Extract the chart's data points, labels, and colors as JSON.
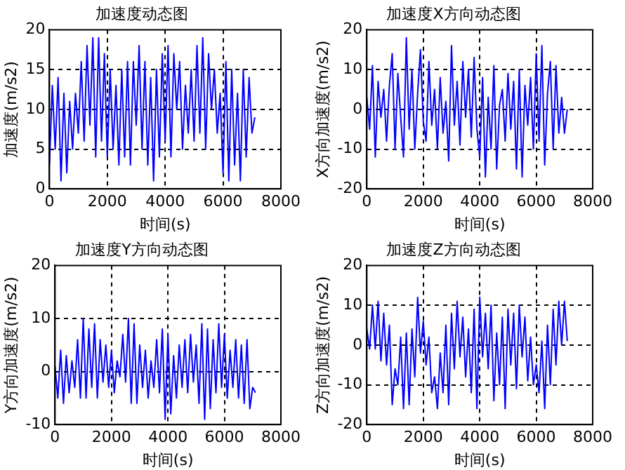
{
  "chart_data": [
    {
      "type": "line",
      "title": "加速度动态图",
      "xlabel": "时间(s)",
      "ylabel": "加速度(m/s2)",
      "grid": true,
      "xlim": [
        0,
        8000
      ],
      "xticks": [
        0,
        2000,
        4000,
        6000,
        8000
      ],
      "ylim": [
        0,
        20
      ],
      "yticks": [
        0,
        5,
        10,
        15,
        20
      ],
      "x": [
        0,
        100,
        200,
        300,
        400,
        500,
        600,
        700,
        800,
        900,
        1000,
        1100,
        1200,
        1300,
        1400,
        1500,
        1600,
        1700,
        1800,
        1900,
        2000,
        2100,
        2200,
        2300,
        2400,
        2500,
        2600,
        2700,
        2800,
        2900,
        3000,
        3100,
        3200,
        3300,
        3400,
        3500,
        3600,
        3700,
        3800,
        3900,
        4000,
        4100,
        4200,
        4300,
        4400,
        4500,
        4600,
        4700,
        4800,
        4900,
        5000,
        5100,
        5200,
        5300,
        5400,
        5500,
        5600,
        5700,
        5800,
        5900,
        6000,
        6100,
        6200,
        6300,
        6400,
        6500,
        6600,
        6700,
        6800,
        6900,
        7000,
        7100
      ],
      "series": [
        {
          "color": "#0000ff",
          "values": [
            3,
            13,
            5,
            14,
            1,
            12,
            2,
            11,
            5,
            12,
            7,
            16,
            6,
            18,
            8,
            19,
            4,
            19,
            6,
            17,
            4,
            15,
            5,
            13,
            3,
            15,
            4,
            16,
            3,
            16,
            8,
            18,
            5,
            16,
            3,
            14,
            1,
            15,
            4,
            17,
            6,
            18,
            4,
            17,
            10,
            16,
            5,
            13,
            7,
            15,
            6,
            18,
            7,
            19,
            5,
            17,
            10,
            15,
            7,
            12,
            2,
            16,
            1,
            15,
            3,
            12,
            1,
            15,
            4,
            14,
            7,
            9
          ]
        }
      ]
    },
    {
      "type": "line",
      "title": "加速度X方向动态图",
      "xlabel": "时间(s)",
      "ylabel": "X方向加速度(m/s2)",
      "grid": true,
      "xlim": [
        0,
        8000
      ],
      "xticks": [
        0,
        2000,
        4000,
        6000,
        8000
      ],
      "ylim": [
        -20,
        20
      ],
      "yticks": [
        -20,
        -10,
        0,
        10,
        20
      ],
      "x": [
        0,
        100,
        200,
        300,
        400,
        500,
        600,
        700,
        800,
        900,
        1000,
        1100,
        1200,
        1300,
        1400,
        1500,
        1600,
        1700,
        1800,
        1900,
        2000,
        2100,
        2200,
        2300,
        2400,
        2500,
        2600,
        2700,
        2800,
        2900,
        3000,
        3100,
        3200,
        3300,
        3400,
        3500,
        3600,
        3700,
        3800,
        3900,
        4000,
        4100,
        4200,
        4300,
        4400,
        4500,
        4600,
        4700,
        4800,
        4900,
        5000,
        5100,
        5200,
        5300,
        5400,
        5500,
        5600,
        5700,
        5800,
        5900,
        6000,
        6100,
        6200,
        6300,
        6400,
        6500,
        6600,
        6700,
        6800,
        6900,
        7000,
        7100
      ],
      "series": [
        {
          "color": "#0000ff",
          "values": [
            3,
            -5,
            11,
            -12,
            7,
            -2,
            5,
            -8,
            6,
            14,
            -10,
            9,
            -2,
            -12,
            18,
            -5,
            10,
            -10,
            4,
            15,
            -3,
            -8,
            12,
            -4,
            5,
            -10,
            8,
            -6,
            2,
            -13,
            16,
            -4,
            7,
            -9,
            12,
            -2,
            10,
            -7,
            13,
            -5,
            -12,
            8,
            -17,
            3,
            -10,
            11,
            -15,
            1,
            5,
            -8,
            9,
            -5,
            7,
            -15,
            10,
            -17,
            6,
            -4,
            8,
            -10,
            14,
            -8,
            16,
            -14,
            4,
            12,
            -10,
            11,
            -6,
            3,
            -6,
            0
          ]
        }
      ]
    },
    {
      "type": "line",
      "title": "加速度Y方向动态图",
      "xlabel": "时间(s)",
      "ylabel": "Y方向加速度(m/s2)",
      "grid": true,
      "xlim": [
        0,
        8000
      ],
      "xticks": [
        0,
        2000,
        4000,
        6000,
        8000
      ],
      "ylim": [
        -10,
        20
      ],
      "yticks": [
        -10,
        0,
        10,
        20
      ],
      "x": [
        0,
        100,
        200,
        300,
        400,
        500,
        600,
        700,
        800,
        900,
        1000,
        1100,
        1200,
        1300,
        1400,
        1500,
        1600,
        1700,
        1800,
        1900,
        2000,
        2100,
        2200,
        2300,
        2400,
        2500,
        2600,
        2700,
        2800,
        2900,
        3000,
        3100,
        3200,
        3300,
        3400,
        3500,
        3600,
        3700,
        3800,
        3900,
        4000,
        4100,
        4200,
        4300,
        4400,
        4500,
        4600,
        4700,
        4800,
        4900,
        5000,
        5100,
        5200,
        5300,
        5400,
        5500,
        5600,
        5700,
        5800,
        5900,
        6000,
        6100,
        6200,
        6300,
        6400,
        6500,
        6600,
        6700,
        6800,
        6900,
        7000,
        7100
      ],
      "series": [
        {
          "color": "#0000ff",
          "values": [
            1,
            -5,
            4,
            -6,
            3,
            -4,
            2,
            -3,
            6,
            -5,
            10,
            -5,
            8,
            -3,
            9,
            -5,
            6,
            -2,
            5,
            -3,
            4,
            -4,
            2,
            -1,
            7,
            -2,
            10,
            -6,
            9,
            -6,
            5,
            -3,
            4,
            -5,
            2,
            -3,
            6,
            -4,
            8,
            -9,
            7,
            -8,
            3,
            -5,
            5,
            -3,
            6,
            -4,
            7,
            -2,
            5,
            -6,
            9,
            -9,
            8,
            -7,
            6,
            -4,
            9,
            -3,
            7,
            -5,
            4,
            -3,
            6,
            -5,
            5,
            -6,
            6,
            -7,
            -3,
            -4
          ]
        }
      ]
    },
    {
      "type": "line",
      "title": "加速度Z方向动态图",
      "xlabel": "时间(s)",
      "ylabel": "Z方向加速度(m/s2)",
      "grid": true,
      "xlim": [
        0,
        8000
      ],
      "xticks": [
        0,
        2000,
        4000,
        6000,
        8000
      ],
      "ylim": [
        -20,
        20
      ],
      "yticks": [
        -20,
        -10,
        0,
        10,
        20
      ],
      "x": [
        0,
        100,
        200,
        300,
        400,
        500,
        600,
        700,
        800,
        900,
        1000,
        1100,
        1200,
        1300,
        1400,
        1500,
        1600,
        1700,
        1800,
        1900,
        2000,
        2100,
        2200,
        2300,
        2400,
        2500,
        2600,
        2700,
        2800,
        2900,
        3000,
        3100,
        3200,
        3300,
        3400,
        3500,
        3600,
        3700,
        3800,
        3900,
        4000,
        4100,
        4200,
        4300,
        4400,
        4500,
        4600,
        4700,
        4800,
        4900,
        5000,
        5100,
        5200,
        5300,
        5400,
        5500,
        5600,
        5700,
        5800,
        5900,
        6000,
        6100,
        6200,
        6300,
        6400,
        6500,
        6600,
        6700,
        6800,
        6900,
        7000,
        7100
      ],
      "series": [
        {
          "color": "#0000ff",
          "values": [
            4,
            -1,
            10,
            -1,
            11,
            -4,
            8,
            -5,
            5,
            -15,
            -6,
            -10,
            2,
            -16,
            3,
            -15,
            4,
            -8,
            12,
            -2,
            6,
            -5,
            2,
            -12,
            -8,
            -16,
            -2,
            -12,
            5,
            -15,
            8,
            -6,
            11,
            -3,
            7,
            -8,
            4,
            -12,
            9,
            -16,
            12,
            -3,
            8,
            -6,
            10,
            -14,
            3,
            -10,
            7,
            -16,
            9,
            -5,
            8,
            -11,
            10,
            -3,
            7,
            -9,
            2,
            -10,
            -5,
            -12,
            1,
            -16,
            5,
            -10,
            9,
            -5,
            11,
            0,
            11,
            1
          ]
        }
      ]
    }
  ]
}
